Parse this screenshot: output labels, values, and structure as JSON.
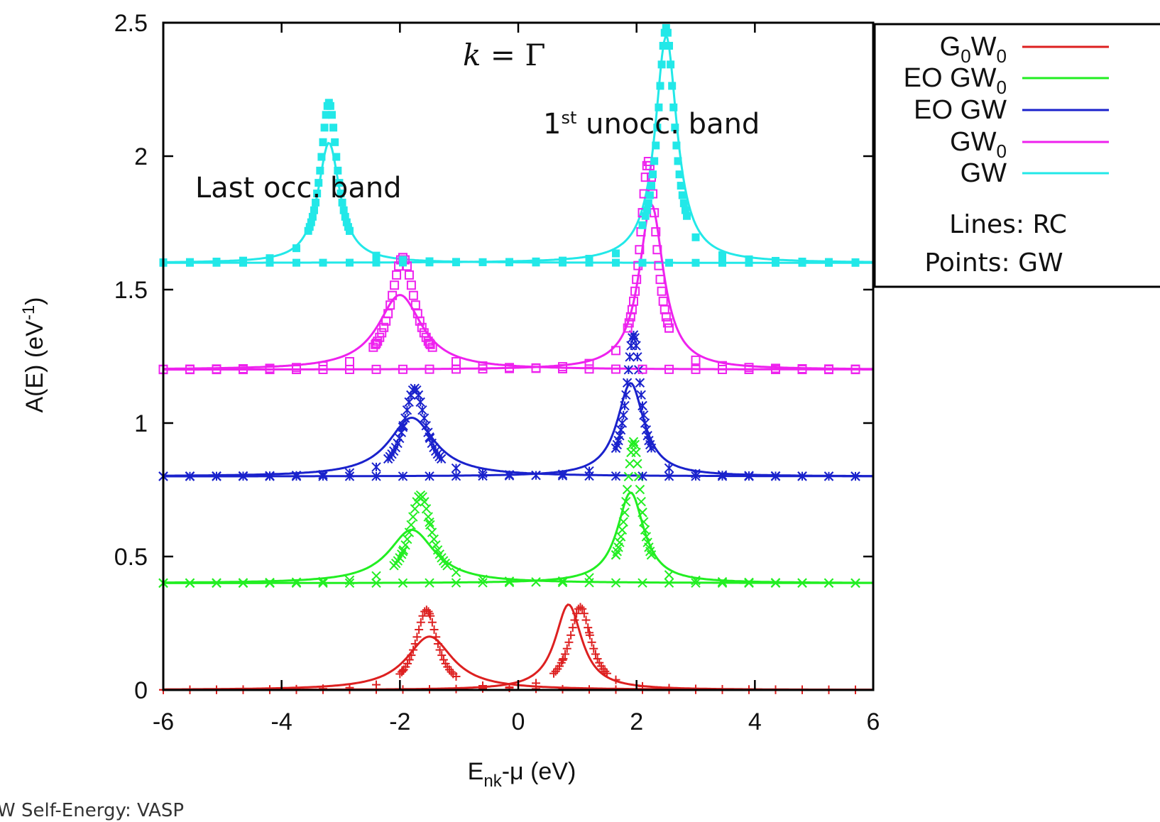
{
  "chart_data": {
    "type": "line",
    "title": "",
    "xlabel": "Enk-μ (eV)",
    "xlabel_main": "E",
    "xlabel_sub": "nk",
    "xlabel_rest": "-μ (eV)",
    "ylabel": "A(E) (eV-1)",
    "ylabel_main": "A(E) (eV",
    "ylabel_sup": "-1",
    "ylabel_end": ")",
    "xlim": [
      -6,
      6
    ],
    "ylim": [
      0,
      2.5
    ],
    "xticks": [
      "-6",
      "-4",
      "-2",
      "0",
      "2",
      "4",
      "6"
    ],
    "yticks": [
      "0",
      "0.5",
      "1",
      "1.5",
      "2",
      "2.5"
    ],
    "grid": false,
    "legend_position": "outside-top-right",
    "annotations": {
      "k_point": "k = Γ",
      "k_point_k": "k",
      "k_point_rest": " = Γ",
      "occ_band": "Last occ. band",
      "unocc_band_sup": "st",
      "unocc_band_num": "1",
      "unocc_band_rest": " unocc. band",
      "legend_lines": "Lines: RC",
      "legend_points": "Points: GW"
    },
    "footnote": "W Self-Energy: VASP",
    "series": [
      {
        "name": "G0W0",
        "legend_main": "G",
        "legend_sub": "0",
        "legend_main2": "W",
        "legend_sub2": "0",
        "color": "#dd2020",
        "marker": "plus",
        "baseline": 0.0,
        "rc_peaks": [
          {
            "e": -1.5,
            "h": 0.2,
            "w": 0.95
          },
          {
            "e": 0.85,
            "h": 0.32,
            "w": 0.55
          }
        ],
        "gw_peaks": [
          {
            "e": -1.55,
            "h": 0.3,
            "w": 0.45
          },
          {
            "e": 1.05,
            "h": 0.31,
            "w": 0.45
          }
        ]
      },
      {
        "name": "EO GW0",
        "legend_main": "EO GW",
        "legend_sub": "0",
        "color": "#22ee22",
        "marker": "x",
        "baseline": 0.4,
        "rc_peaks": [
          {
            "e": -1.8,
            "h": 0.2,
            "w": 0.95
          },
          {
            "e": 1.9,
            "h": 0.34,
            "w": 0.55
          }
        ],
        "gw_peaks": [
          {
            "e": -1.65,
            "h": 0.33,
            "w": 0.45
          },
          {
            "e": 1.95,
            "h": 0.53,
            "w": 0.3
          }
        ]
      },
      {
        "name": "EO GW",
        "legend_main": "EO GW",
        "legend_sub": "",
        "color": "#1a22cc",
        "marker": "star",
        "baseline": 0.8,
        "rc_peaks": [
          {
            "e": -1.8,
            "h": 0.22,
            "w": 0.95
          },
          {
            "e": 1.9,
            "h": 0.35,
            "w": 0.55
          }
        ],
        "gw_peaks": [
          {
            "e": -1.75,
            "h": 0.33,
            "w": 0.45
          },
          {
            "e": 1.95,
            "h": 0.53,
            "w": 0.3
          }
        ]
      },
      {
        "name": "GW0",
        "legend_main": "GW",
        "legend_sub": "0",
        "color": "#ee22ee",
        "marker": "square-open",
        "baseline": 1.2,
        "rc_peaks": [
          {
            "e": -2.0,
            "h": 0.28,
            "w": 0.9
          },
          {
            "e": 2.25,
            "h": 0.62,
            "w": 0.5
          }
        ],
        "gw_peaks": [
          {
            "e": -1.95,
            "h": 0.42,
            "w": 0.5
          },
          {
            "e": 2.2,
            "h": 0.78,
            "w": 0.35
          }
        ]
      },
      {
        "name": "GW",
        "legend_main": "GW",
        "legend_sub": "",
        "color": "#22e8e8",
        "marker": "square-filled",
        "baseline": 1.6,
        "rc_peaks": [
          {
            "e": -3.2,
            "h": 0.45,
            "w": 0.45
          },
          {
            "e": 2.5,
            "h": 0.85,
            "w": 0.45
          }
        ],
        "gw_peaks": [
          {
            "e": -3.2,
            "h": 0.6,
            "w": 0.35
          },
          {
            "e": 2.5,
            "h": 0.88,
            "w": 0.35
          }
        ]
      }
    ]
  }
}
